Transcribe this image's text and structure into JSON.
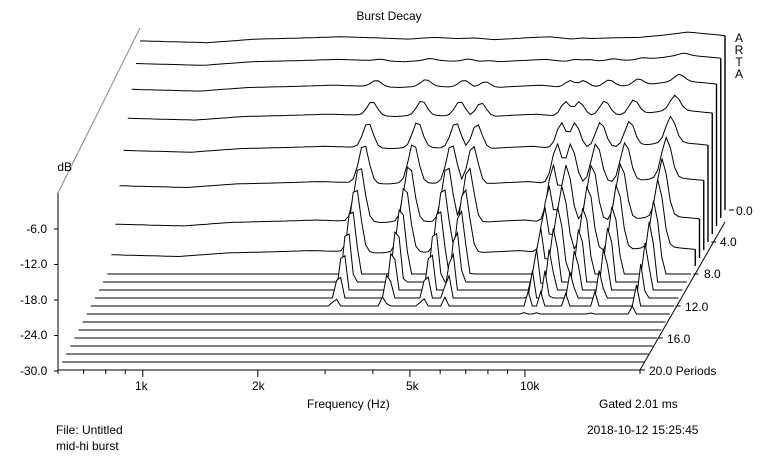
{
  "window": {
    "brand_letters": [
      "A",
      "R",
      "T",
      "A"
    ],
    "file_line": "File: Untitled",
    "description": "mid-hi burst",
    "timestamp": "2018-10-12  15:25:45",
    "gate_info": "Gated 2.01 ms"
  },
  "chart_data": {
    "type": "waterfall",
    "title": "Burst Decay",
    "xlabel": "Frequency (Hz)",
    "ylabel": "dB",
    "zlabel": "Periods",
    "x_scale": "log",
    "x_tick_labels": [
      "1k",
      "2k",
      "5k",
      "10k"
    ],
    "x_ticks": [
      1000,
      2000,
      5000,
      10000
    ],
    "y_tick_labels": [
      "-6.0",
      "-12.0",
      "-18.0",
      "-24.0",
      "-30.0"
    ],
    "y_ticks": [
      -6,
      -12,
      -18,
      -24,
      -30
    ],
    "ylim": [
      -30,
      0
    ],
    "z_tick_labels": [
      "0.0",
      "4.0",
      "8.0",
      "12.0",
      "16.0",
      "20.0 Periods"
    ],
    "z_ticks": [
      0,
      4,
      8,
      12,
      16,
      20
    ],
    "slice_count": 21,
    "slices_step_periods": 1.0,
    "front_slice_profile": {
      "frequency_hz": [
        600,
        900,
        1200,
        1600,
        2000,
        2500,
        3000,
        3500,
        4000,
        4500,
        5000,
        6000,
        7000,
        8000,
        8500,
        9000,
        10000,
        12000,
        14000,
        16000,
        20000
      ],
      "level_db": [
        -1.5,
        -1.8,
        -1.2,
        -1.0,
        -0.8,
        -1.0,
        -1.2,
        -0.9,
        -1.1,
        -1.0,
        -1.3,
        -1.0,
        -0.8,
        -1.2,
        -1.0,
        -1.1,
        -1.0,
        -0.9,
        -0.5,
        0.0,
        -0.6
      ]
    }
  }
}
